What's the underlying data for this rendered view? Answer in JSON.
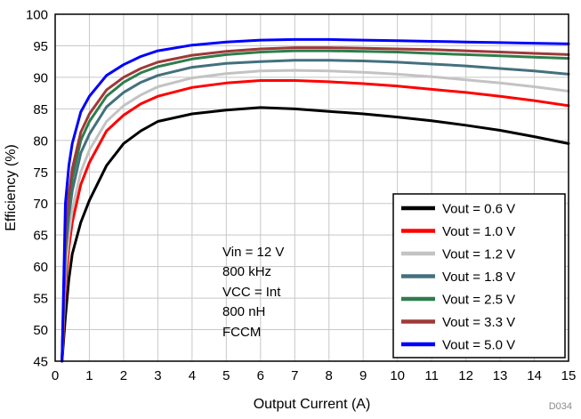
{
  "figure": {
    "code": "D034"
  },
  "annotation": {
    "lines": [
      "Vin = 12 V",
      "800 kHz",
      "VCC = Int",
      "800 nH",
      "FCCM"
    ]
  },
  "chart_data": {
    "type": "line",
    "title": "",
    "xlabel": "Output Current (A)",
    "ylabel": "Efficiency (%)",
    "xlim": [
      0,
      15
    ],
    "ylim": [
      45,
      100
    ],
    "xticks": [
      0,
      1,
      2,
      3,
      4,
      5,
      6,
      7,
      8,
      9,
      10,
      11,
      12,
      13,
      14,
      15
    ],
    "yticks": [
      45,
      50,
      55,
      60,
      65,
      70,
      75,
      80,
      85,
      90,
      95,
      100
    ],
    "grid": true,
    "grid_color": "#c8c8c8",
    "legend_position": "inside-bottom-right",
    "x": [
      0.2,
      0.3,
      0.4,
      0.5,
      0.75,
      1,
      1.5,
      2,
      2.5,
      3,
      4,
      5,
      6,
      7,
      8,
      9,
      10,
      11,
      12,
      13,
      14,
      15
    ],
    "series": [
      {
        "name": "Vout = 0.6 V",
        "color": "#000000",
        "values": [
          45,
          52,
          58,
          62,
          67,
          70.5,
          76,
          79.5,
          81.5,
          83,
          84.2,
          84.8,
          85.2,
          85,
          84.6,
          84.2,
          83.7,
          83.1,
          82.4,
          81.6,
          80.6,
          79.5
        ]
      },
      {
        "name": "Vout = 1.0 V",
        "color": "#ff0000",
        "values": [
          45,
          57,
          63,
          67,
          73,
          76.5,
          81.5,
          84,
          85.8,
          87,
          88.4,
          89.1,
          89.5,
          89.5,
          89.3,
          89,
          88.6,
          88.1,
          87.6,
          87,
          86.3,
          85.5
        ]
      },
      {
        "name": "Vout = 1.2 V",
        "color": "#c3c3c3",
        "values": [
          45,
          59,
          65,
          69,
          75,
          78.5,
          83,
          85.5,
          87.2,
          88.5,
          89.9,
          90.6,
          91,
          91.1,
          91,
          90.8,
          90.5,
          90.1,
          89.6,
          89.1,
          88.5,
          87.8
        ]
      },
      {
        "name": "Vout = 1.8 V",
        "color": "#44707e",
        "values": [
          45,
          62,
          68,
          72,
          78,
          81,
          85.3,
          87.6,
          89.2,
          90.3,
          91.6,
          92.2,
          92.5,
          92.7,
          92.7,
          92.6,
          92.4,
          92.1,
          91.8,
          91.4,
          91,
          90.5
        ]
      },
      {
        "name": "Vout = 2.5 V",
        "color": "#2e7d4c",
        "values": [
          45,
          64,
          70,
          74,
          80,
          83,
          87,
          89.2,
          90.7,
          91.7,
          92.9,
          93.6,
          94,
          94.2,
          94.2,
          94.1,
          94,
          93.8,
          93.6,
          93.4,
          93.2,
          93
        ]
      },
      {
        "name": "Vout = 3.3 V",
        "color": "#9e3a38",
        "values": [
          45,
          65.5,
          71.5,
          75.5,
          81.3,
          84.2,
          88,
          90,
          91.4,
          92.4,
          93.5,
          94.1,
          94.5,
          94.7,
          94.7,
          94.6,
          94.5,
          94.4,
          94.2,
          94,
          93.8,
          93.6
        ]
      },
      {
        "name": "Vout = 5.0 V",
        "color": "#0000ff",
        "values": [
          45,
          70,
          76,
          79.5,
          84.5,
          87,
          90.3,
          92,
          93.3,
          94.2,
          95.1,
          95.6,
          95.9,
          96,
          96,
          95.9,
          95.8,
          95.7,
          95.6,
          95.5,
          95.4,
          95.3
        ]
      }
    ]
  }
}
